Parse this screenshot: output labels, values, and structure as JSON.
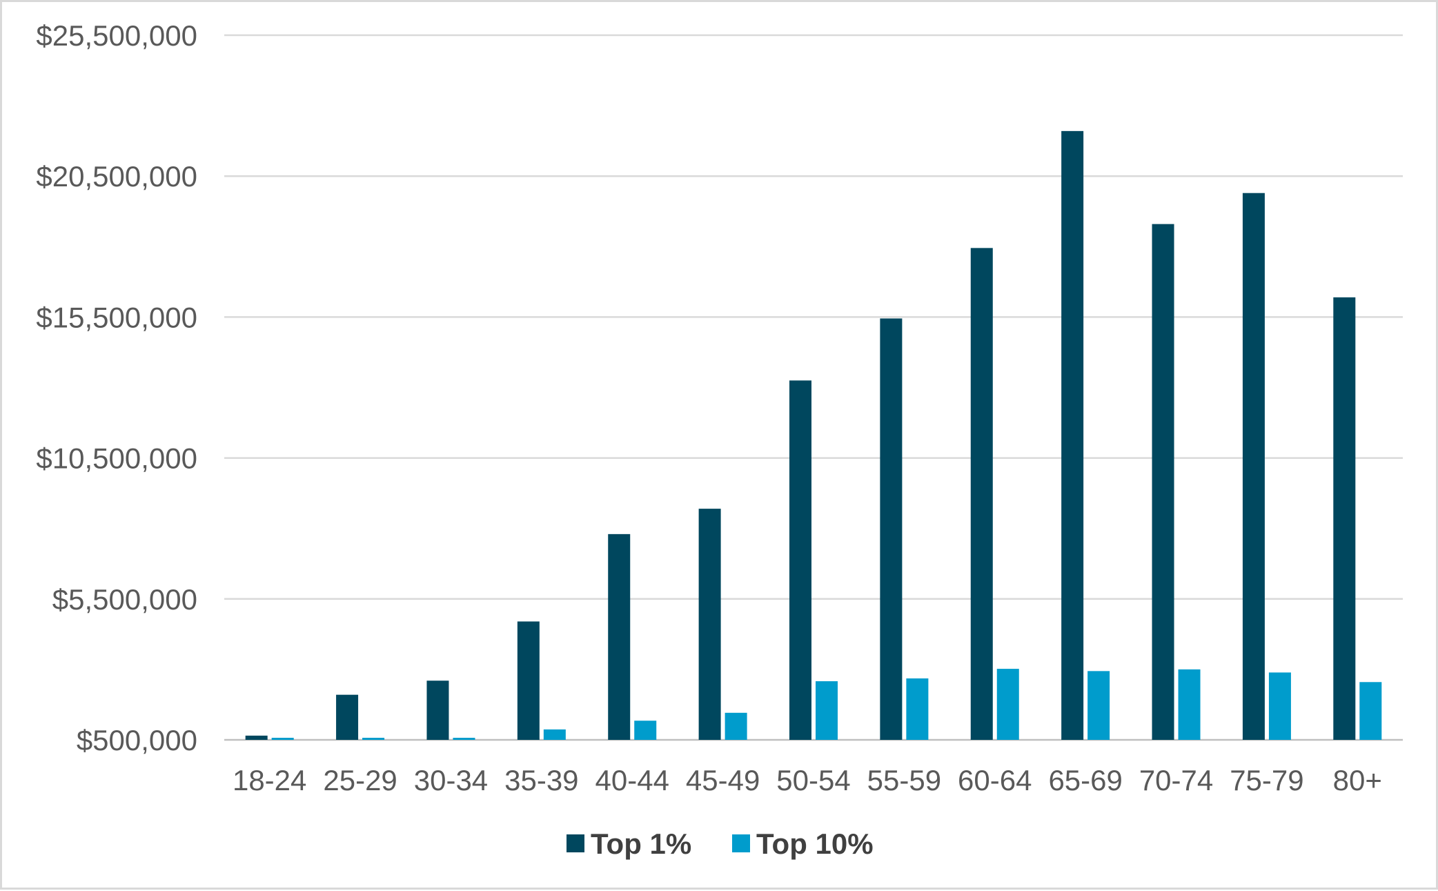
{
  "chart_data": {
    "type": "bar",
    "categories": [
      "18-24",
      "25-29",
      "30-34",
      "35-39",
      "40-44",
      "45-49",
      "50-54",
      "55-59",
      "60-64",
      "65-69",
      "70-74",
      "75-79",
      "80+"
    ],
    "series": [
      {
        "name": "Top 1%",
        "color": "#00475e",
        "values": [
          650000,
          2100000,
          2600000,
          4700000,
          7800000,
          8700000,
          13250000,
          15450000,
          17950000,
          22100000,
          18800000,
          19900000,
          16200000
        ]
      },
      {
        "name": "Top 10%",
        "color": "#009ccc",
        "values": [
          480000,
          480000,
          540000,
          870000,
          1180000,
          1460000,
          2580000,
          2680000,
          3020000,
          2940000,
          3000000,
          2890000,
          2550000
        ]
      }
    ],
    "y_ticks": [
      "$500,000",
      "$5,500,000",
      "$10,500,000",
      "$15,500,000",
      "$20,500,000",
      "$25,500,000"
    ],
    "ylim": [
      500000,
      25500000
    ],
    "grid": true,
    "legend_position": "bottom-center"
  }
}
